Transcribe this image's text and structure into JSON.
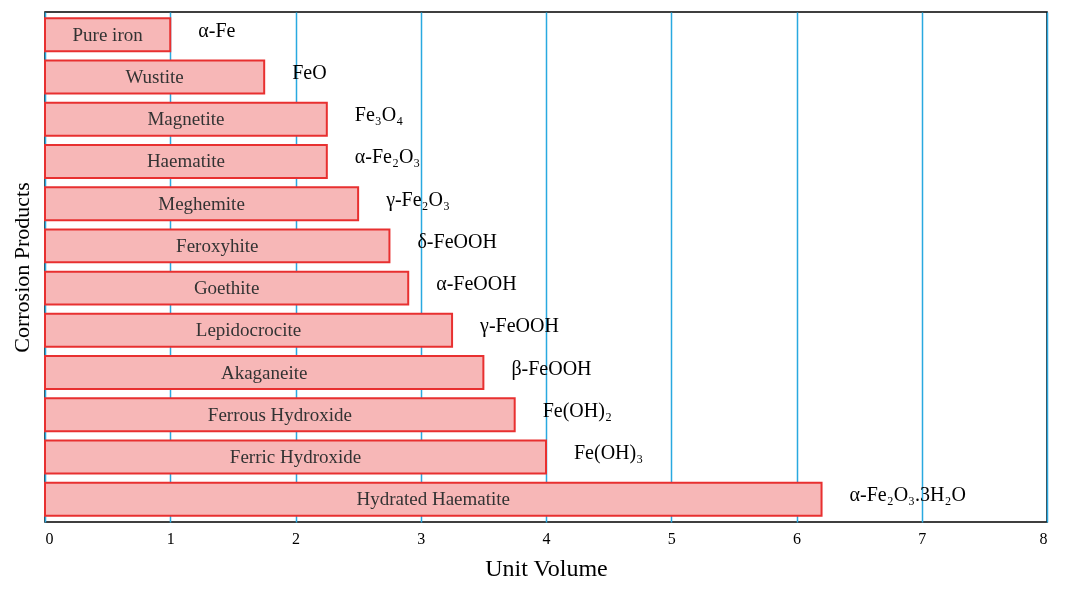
{
  "chart_data": {
    "type": "bar",
    "orientation": "horizontal",
    "xlabel": "Unit Volume",
    "ylabel": "Corrosion Products",
    "categories": [
      "Pure iron",
      "Wustite",
      "Magnetite",
      "Haematite",
      "Meghemite",
      "Feroxyhite",
      "Goethite",
      "Lepidocrocite",
      "Akaganeite",
      "Ferrous Hydroxide",
      "Ferric Hydroxide",
      "Hydrated Haematite"
    ],
    "values": [
      1.0,
      1.75,
      2.25,
      2.25,
      2.5,
      2.75,
      2.9,
      3.25,
      3.5,
      3.75,
      4.0,
      6.2
    ],
    "color": "#e83030",
    "xlim": [
      0,
      8
    ],
    "xticks": [
      0,
      1,
      2,
      3,
      4,
      5,
      6,
      7,
      8
    ],
    "grid": "x",
    "tick_labels": "x",
    "annotations": [
      "α-Fe",
      "FeO",
      "Fe₃O₄",
      "α-Fe₂O₃",
      "γ-Fe₂O₃",
      "δ-FeOOH",
      "α-FeOOH",
      "γ-FeOOH",
      "β-FeOOH",
      "Fe(OH)₂",
      "Fe(OH)₃",
      "α-Fe₂O₃.3H₂O"
    ]
  }
}
